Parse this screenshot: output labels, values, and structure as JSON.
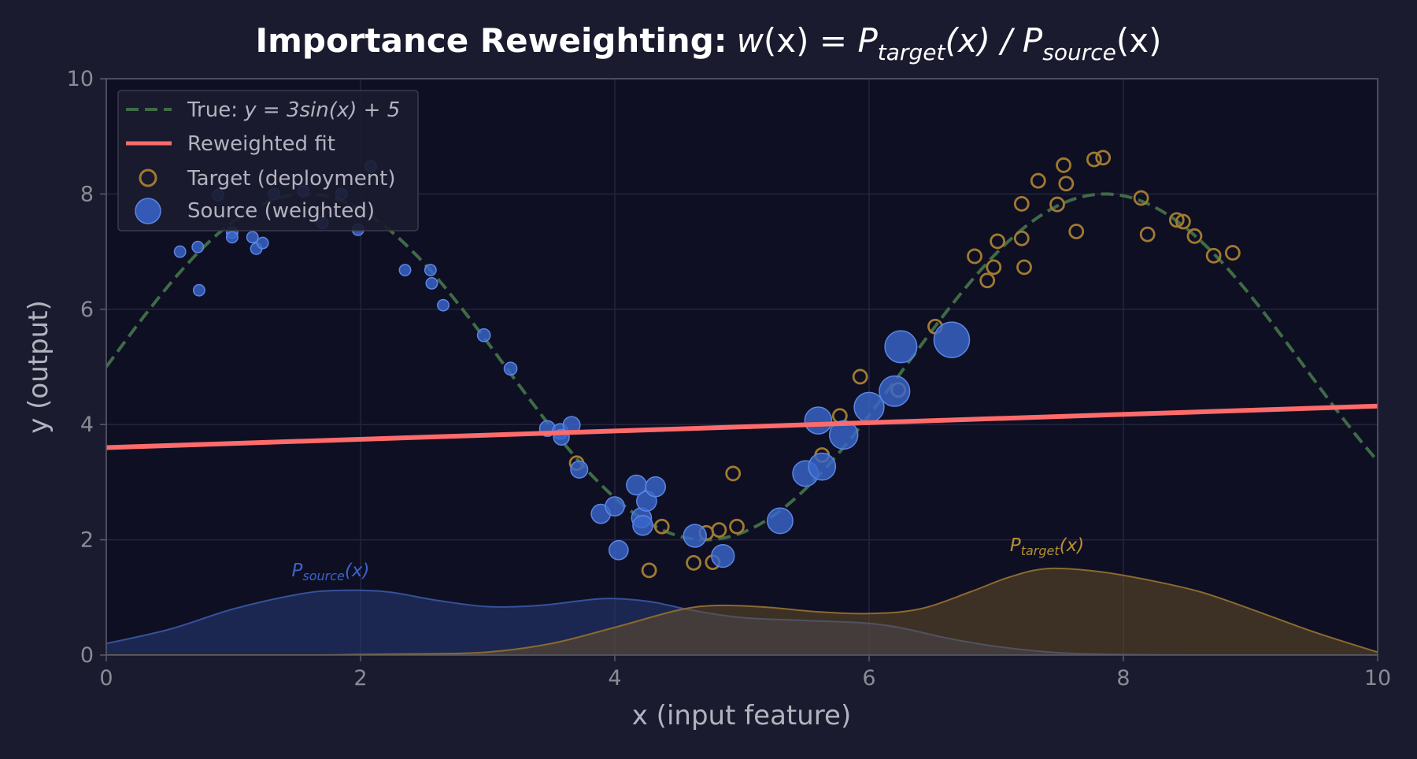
{
  "chart_data": {
    "type": "scatter",
    "title_prefix": "Importance Reweighting:",
    "title_formula": {
      "pre": "w",
      "arg": "(x)",
      "eq": " = P",
      "target_sub": "target",
      "slash": "(x) / P",
      "source_sub": "source",
      "post": "(x)"
    },
    "xlabel": "x (input feature)",
    "ylabel": "y (output)",
    "xlim": [
      0,
      10
    ],
    "ylim": [
      0,
      10
    ],
    "xticks": [
      0,
      2,
      4,
      6,
      8,
      10
    ],
    "yticks": [
      0,
      2,
      4,
      6,
      8,
      10
    ],
    "grid": true,
    "legend_position": "top-left",
    "legend": {
      "true_label_prefix": "True: ",
      "true_label_formula": "y = 3sin(x) + 5",
      "fit_label": "Reweighted fit",
      "target_label": "Target (deployment)",
      "source_label": "Source (weighted)"
    },
    "density_labels": {
      "source_main": "P",
      "source_sub": "source",
      "source_tail": "(x)",
      "target_main": "P",
      "target_sub": "target",
      "target_tail": "(x)"
    },
    "true_function": {
      "amplitude": 3,
      "offset": 5
    },
    "reweighted_fit": {
      "x": [
        0,
        10
      ],
      "y": [
        3.6,
        4.32
      ]
    },
    "density_source": {
      "x": [
        0,
        0.5,
        1,
        1.5,
        1.8,
        2.2,
        2.6,
        3,
        3.4,
        3.8,
        4,
        4.3,
        4.6,
        5,
        5.5,
        6,
        6.3,
        6.6,
        7,
        7.5,
        8,
        8.5,
        9,
        10
      ],
      "y": [
        0.2,
        0.45,
        0.8,
        1.05,
        1.12,
        1.1,
        0.95,
        0.84,
        0.86,
        0.96,
        0.98,
        0.92,
        0.78,
        0.65,
        0.6,
        0.55,
        0.45,
        0.3,
        0.15,
        0.04,
        0.01,
        0,
        0,
        0
      ]
    },
    "density_target": {
      "x": [
        0,
        1.5,
        2,
        2.5,
        3,
        3.5,
        4,
        4.5,
        4.8,
        5.2,
        5.6,
        6,
        6.4,
        6.8,
        7.1,
        7.4,
        7.8,
        8.2,
        8.6,
        9,
        9.5,
        10
      ],
      "y": [
        0,
        0,
        0.01,
        0.02,
        0.05,
        0.2,
        0.48,
        0.78,
        0.86,
        0.83,
        0.75,
        0.72,
        0.8,
        1.1,
        1.35,
        1.5,
        1.45,
        1.3,
        1.1,
        0.8,
        0.4,
        0.05
      ]
    },
    "target_points": [
      [
        3.7,
        3.33
      ],
      [
        4.27,
        1.47
      ],
      [
        4.37,
        2.23
      ],
      [
        4.62,
        1.6
      ],
      [
        4.72,
        2.12
      ],
      [
        4.77,
        1.61
      ],
      [
        4.82,
        2.17
      ],
      [
        4.96,
        2.23
      ],
      [
        4.93,
        3.15
      ],
      [
        5.63,
        3.47
      ],
      [
        5.77,
        4.15
      ],
      [
        5.93,
        4.83
      ],
      [
        6.23,
        4.6
      ],
      [
        6.52,
        5.7
      ],
      [
        6.83,
        6.92
      ],
      [
        6.93,
        6.5
      ],
      [
        6.98,
        6.73
      ],
      [
        7.01,
        7.18
      ],
      [
        7.2,
        7.83
      ],
      [
        7.2,
        7.23
      ],
      [
        7.22,
        6.73
      ],
      [
        7.33,
        8.23
      ],
      [
        7.48,
        7.82
      ],
      [
        7.53,
        8.5
      ],
      [
        7.55,
        8.18
      ],
      [
        7.63,
        7.35
      ],
      [
        7.77,
        8.6
      ],
      [
        7.84,
        8.63
      ],
      [
        8.14,
        7.93
      ],
      [
        8.19,
        7.3
      ],
      [
        8.42,
        7.55
      ],
      [
        8.47,
        7.52
      ],
      [
        8.56,
        7.27
      ],
      [
        8.71,
        6.93
      ],
      [
        8.86,
        6.98
      ]
    ],
    "source_points": [
      [
        0.58,
        7.0,
        0.15
      ],
      [
        0.72,
        7.08,
        0.15
      ],
      [
        0.73,
        6.33,
        0.15
      ],
      [
        0.88,
        7.98,
        0.15
      ],
      [
        0.99,
        7.33,
        0.15
      ],
      [
        0.99,
        7.25,
        0.15
      ],
      [
        1.15,
        7.25,
        0.15
      ],
      [
        1.18,
        7.05,
        0.15
      ],
      [
        1.23,
        7.15,
        0.15
      ],
      [
        1.32,
        8.0,
        0.15
      ],
      [
        1.55,
        8.05,
        0.15
      ],
      [
        1.7,
        7.5,
        0.15
      ],
      [
        1.85,
        8.0,
        0.15
      ],
      [
        1.98,
        7.38,
        0.15
      ],
      [
        2.08,
        8.48,
        0.15
      ],
      [
        2.35,
        6.68,
        0.15
      ],
      [
        2.55,
        6.68,
        0.15
      ],
      [
        2.56,
        6.45,
        0.15
      ],
      [
        2.65,
        6.07,
        0.15
      ],
      [
        2.97,
        5.55,
        0.2
      ],
      [
        3.18,
        4.97,
        0.2
      ],
      [
        3.47,
        3.93,
        0.3
      ],
      [
        3.57,
        3.88,
        0.3
      ],
      [
        3.58,
        3.78,
        0.3
      ],
      [
        3.66,
        3.99,
        0.35
      ],
      [
        3.72,
        3.22,
        0.35
      ],
      [
        3.89,
        2.45,
        0.42
      ],
      [
        4.0,
        2.58,
        0.42
      ],
      [
        4.03,
        1.82,
        0.42
      ],
      [
        4.17,
        2.95,
        0.45
      ],
      [
        4.21,
        2.38,
        0.45
      ],
      [
        4.22,
        2.25,
        0.45
      ],
      [
        4.25,
        2.67,
        0.45
      ],
      [
        4.32,
        2.92,
        0.45
      ],
      [
        4.63,
        2.07,
        0.55
      ],
      [
        4.85,
        1.72,
        0.55
      ],
      [
        5.3,
        2.33,
        0.65
      ],
      [
        5.5,
        3.15,
        0.65
      ],
      [
        5.6,
        4.07,
        0.7
      ],
      [
        5.63,
        3.27,
        0.7
      ],
      [
        5.8,
        3.82,
        0.75
      ],
      [
        6.0,
        4.3,
        0.8
      ],
      [
        6.2,
        4.58,
        0.82
      ],
      [
        6.25,
        5.35,
        0.88
      ],
      [
        6.65,
        5.47,
        1.0
      ]
    ]
  }
}
